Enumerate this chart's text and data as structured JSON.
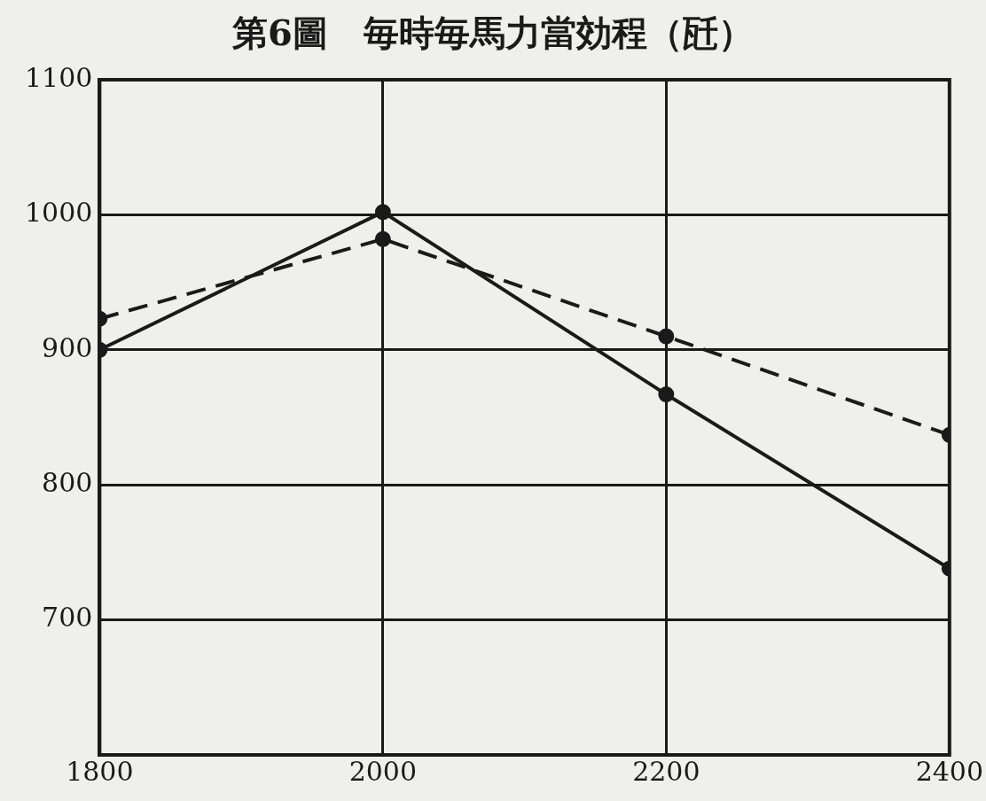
{
  "chart_data": {
    "type": "line",
    "title": "第6圖　毎時毎馬力當効程（瓩）",
    "x": [
      1800,
      2000,
      2200,
      2400
    ],
    "series": [
      {
        "color": "#1a1a1a",
        "values": [
          900,
          1002,
          867,
          738
        ],
        "line_style": "solid"
      },
      {
        "color": "#1a1a1a",
        "values": [
          923,
          982,
          910,
          837
        ],
        "line_style": "dashed"
      }
    ],
    "xlim": [
      1800,
      2400
    ],
    "xticks": [
      1800,
      2000,
      2200,
      2400
    ],
    "ylim": [
      600,
      1100
    ],
    "yticks": [
      {
        "value": 600,
        "label": null
      },
      700,
      800,
      900,
      1000,
      1100
    ],
    "grid": true,
    "legend": false,
    "marker": "circle"
  }
}
